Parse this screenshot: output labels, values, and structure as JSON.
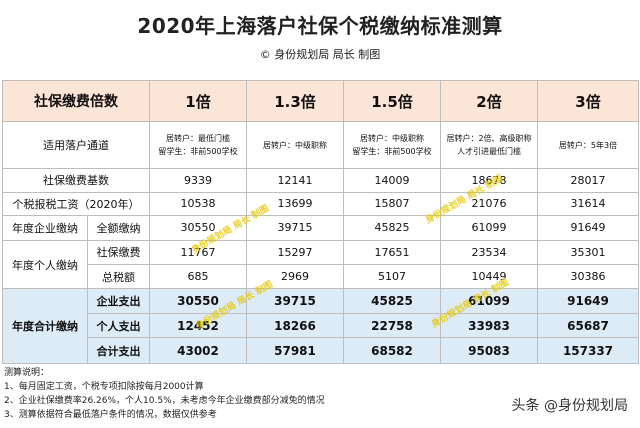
{
  "title": "2020年上海落户社保个税缴纳标准测算",
  "credit": "© 身份规划局 局长 制图",
  "header": {
    "label": "社保缴费倍数",
    "cols": [
      "1倍",
      "1.3倍",
      "1.5倍",
      "2倍",
      "3倍"
    ]
  },
  "channel": {
    "label": "适用落户通道",
    "cells": [
      [
        "居转户：最低门槛",
        "留学生：非前500学校"
      ],
      [
        "居转户：中级职称"
      ],
      [
        "居转户：中级职称",
        "留学生：非前500学校"
      ],
      [
        "居转户：2倍、高级职称",
        "人才引进最低门槛"
      ],
      [
        "居转户：5年3倍"
      ]
    ]
  },
  "rows": {
    "base": {
      "label": "社保缴费基数",
      "values": [
        "9339",
        "12141",
        "14009",
        "18678",
        "28017"
      ]
    },
    "salary": {
      "label": "个税报税工资（2020年）",
      "values": [
        "10538",
        "13699",
        "15807",
        "21076",
        "31614"
      ]
    },
    "enterprise": {
      "group": "年度企业缴纳",
      "sub": "全额缴纳",
      "values": [
        "30550",
        "39715",
        "45825",
        "61099",
        "91649"
      ]
    },
    "personal": {
      "group": "年度个人缴纳",
      "social": {
        "sub": "社保缴费",
        "values": [
          "11767",
          "15297",
          "17651",
          "23534",
          "35301"
        ]
      },
      "tax": {
        "sub": "总税额",
        "values": [
          "685",
          "2969",
          "5107",
          "10449",
          "30386"
        ]
      }
    },
    "total": {
      "group": "年度合计缴纳",
      "company": {
        "sub": "企业支出",
        "values": [
          "30550",
          "39715",
          "45825",
          "61099",
          "91649"
        ]
      },
      "person": {
        "sub": "个人支出",
        "values": [
          "12452",
          "18266",
          "22758",
          "33983",
          "65687"
        ]
      },
      "all": {
        "sub": "合计支出",
        "values": [
          "43002",
          "57981",
          "68582",
          "95083",
          "157337"
        ]
      }
    }
  },
  "notes": [
    "测算说明：",
    "1、每月固定工资，个税专项扣除按每月2000计算",
    "2、企业社保缴费率26.26%，个人10.5%，未考虑今年企业缴费部分减免的情况",
    "3、测算依据符合最低落户条件的情况，数据仅供参考"
  ],
  "watermark": "头条 @身份规划局",
  "stamp_text": "身份规划局 局长 制图"
}
